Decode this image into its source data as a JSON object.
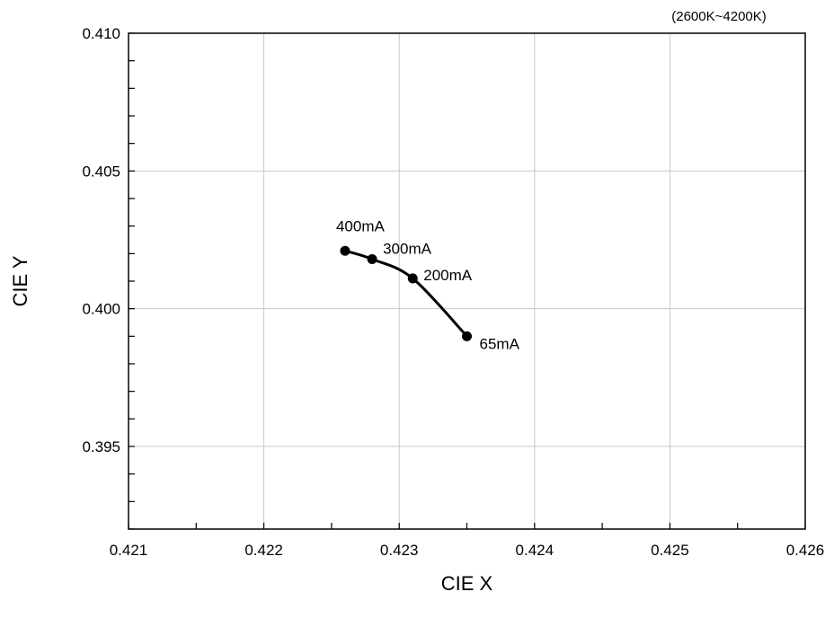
{
  "chart_data": {
    "type": "line",
    "title": "",
    "subtitle": "(2600K~4200K)",
    "xlabel": "CIE X",
    "ylabel": "CIE Y",
    "xlim": [
      0.421,
      0.426
    ],
    "ylim": [
      0.392,
      0.41
    ],
    "x_ticks": [
      "0.421",
      "0.422",
      "0.423",
      "0.424",
      "0.425",
      "0.426"
    ],
    "y_ticks": [
      "0.395",
      "0.400",
      "0.405",
      "0.410"
    ],
    "x_tick_values": [
      0.421,
      0.422,
      0.423,
      0.424,
      0.425,
      0.426
    ],
    "y_tick_values": [
      0.395,
      0.4,
      0.405,
      0.41
    ],
    "grid": true,
    "series": [
      {
        "points": [
          {
            "x": 0.4226,
            "y": 0.4021,
            "label": "400mA"
          },
          {
            "x": 0.4228,
            "y": 0.4018,
            "label": "300mA"
          },
          {
            "x": 0.4231,
            "y": 0.4011,
            "label": "200mA"
          },
          {
            "x": 0.4235,
            "y": 0.399,
            "label": "65mA"
          }
        ],
        "color": "#000000"
      }
    ]
  }
}
